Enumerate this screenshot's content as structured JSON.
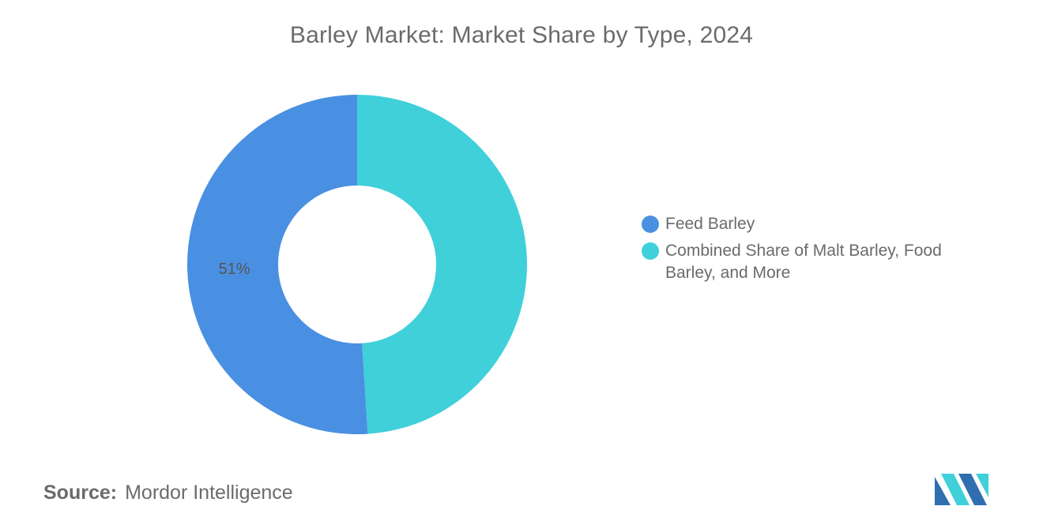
{
  "chart_data": {
    "type": "pie",
    "variant": "donut",
    "title": "Barley Market: Market Share by Type, 2024",
    "categories": [
      "Feed Barley",
      "Combined Share of Malt Barley, Food Barley, and More"
    ],
    "values": [
      51,
      49
    ],
    "data_labels": [
      "51%",
      ""
    ],
    "colors": [
      "#4a90e2",
      "#40d0da"
    ],
    "legend_position": "right",
    "unit": "%"
  },
  "footer": {
    "source_label": "Source:",
    "source_value": "Mordor Intelligence"
  },
  "colors": {
    "text": "#6b6b6b",
    "logo_dark": "#2f6fb0",
    "logo_light": "#40d0da"
  }
}
